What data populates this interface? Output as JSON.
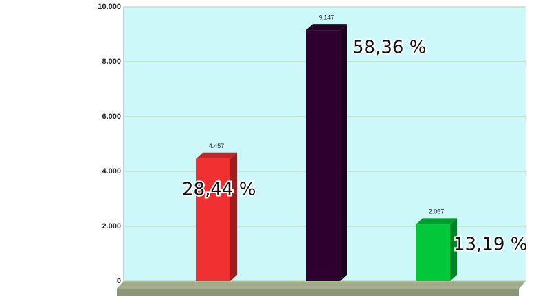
{
  "chart_data": {
    "type": "bar",
    "values": [
      4457,
      9147,
      2067
    ],
    "value_labels": [
      "4.457",
      "9.147",
      "2.067"
    ],
    "annotations": [
      "28,44 %",
      "58,36 %",
      "13,19 %"
    ],
    "colors": [
      "#f03030",
      "#2e0030",
      "#00c83a"
    ],
    "ylim": [
      0,
      10000
    ],
    "yticks": [
      0,
      {
        "value": 2000,
        "label": "2.000"
      },
      {
        "value": 4000,
        "label": "4.000"
      },
      {
        "value": 6000,
        "label": "6.000"
      },
      {
        "value": 8000,
        "label": "8.000"
      },
      {
        "value": 10000,
        "label": "10.000"
      }
    ],
    "grid": true
  }
}
